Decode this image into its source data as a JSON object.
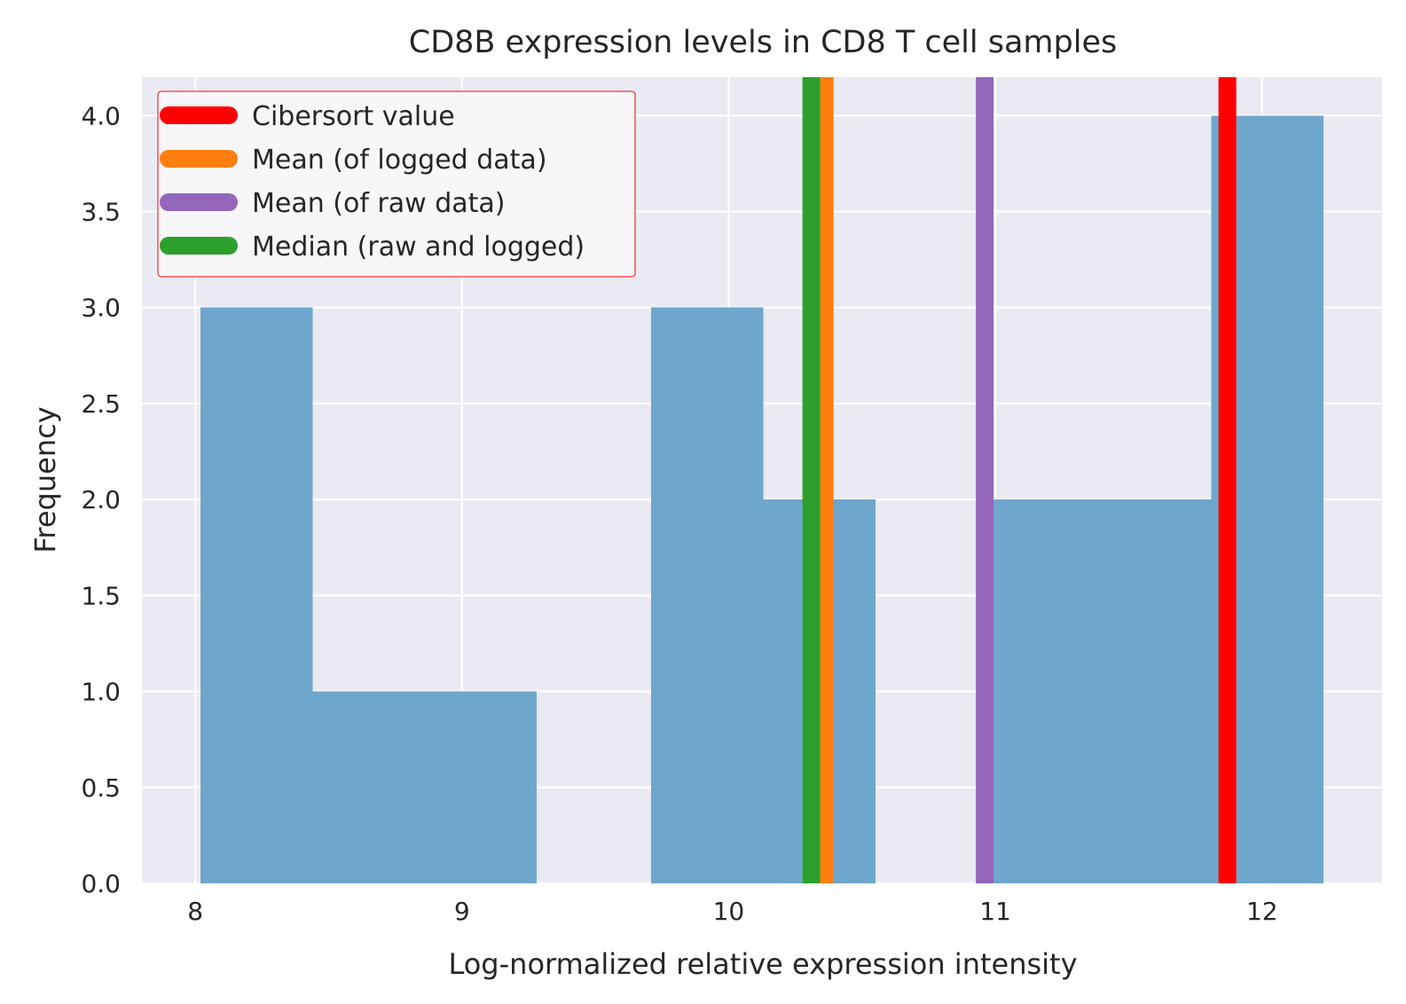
{
  "chart_data": {
    "type": "bar",
    "title": "CD8B expression levels in CD8 T cell samples",
    "xlabel": "Log-normalized relative expression intensity",
    "ylabel": "Frequency",
    "xlim": [
      7.8,
      12.45
    ],
    "ylim": [
      0,
      4.2
    ],
    "xticks": [
      8,
      9,
      10,
      11,
      12
    ],
    "xtick_labels": [
      "8",
      "9",
      "10",
      "11",
      12
    ],
    "yticks": [
      0,
      0.5,
      1,
      1.5,
      2,
      2.5,
      3,
      3.5,
      4
    ],
    "ytick_labels": [
      "0.0",
      "0.5",
      "1.0",
      "1.5",
      "2.0",
      "2.5",
      "3.0",
      "3.5",
      "4.0"
    ],
    "grid": true,
    "legend_position": "top-left",
    "bar_color": "#6fa6cc",
    "bins": [
      {
        "start": 8.02,
        "end": 8.44,
        "count": 3
      },
      {
        "start": 8.44,
        "end": 8.86,
        "count": 1
      },
      {
        "start": 8.86,
        "end": 9.28,
        "count": 1
      },
      {
        "start": 9.28,
        "end": 9.71,
        "count": 0
      },
      {
        "start": 9.71,
        "end": 10.13,
        "count": 3
      },
      {
        "start": 10.13,
        "end": 10.55,
        "count": 2
      },
      {
        "start": 10.55,
        "end": 10.97,
        "count": 0
      },
      {
        "start": 10.97,
        "end": 11.39,
        "count": 2
      },
      {
        "start": 11.39,
        "end": 11.81,
        "count": 2
      },
      {
        "start": 11.81,
        "end": 12.23,
        "count": 4
      }
    ],
    "reference_lines": [
      {
        "label": "Cibersort value",
        "x": 11.87,
        "color": "#ff0000"
      },
      {
        "label": "Mean (of logged data)",
        "x": 10.36,
        "color": "#ff7f0e"
      },
      {
        "label": "Mean (of raw data)",
        "x": 10.96,
        "color": "#9467bd"
      },
      {
        "label": "Median (raw and logged)",
        "x": 10.31,
        "color": "#2ca02c"
      }
    ]
  }
}
